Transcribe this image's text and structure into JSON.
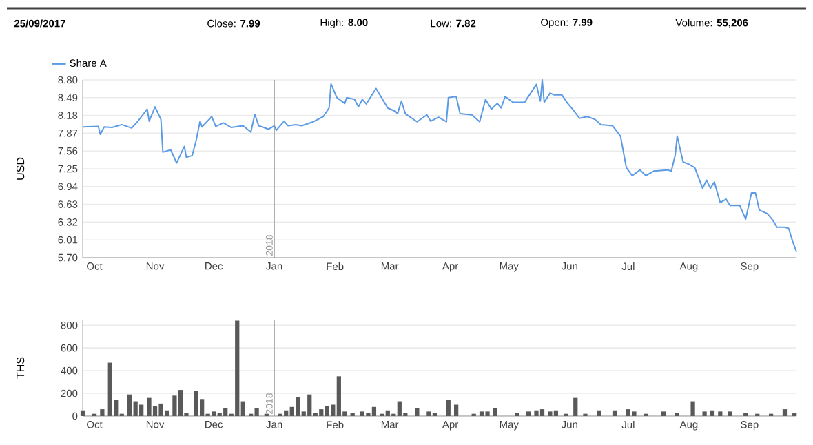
{
  "chart_data": [
    {
      "type": "line",
      "ylabel": "USD",
      "grid": "y",
      "legend": "top left",
      "annotations": [
        "25/09/2017",
        "Close: **7.99**",
        "High: **8.00**",
        "Low: **7.82**",
        "Open: **7.99**",
        "Volume: **55,206**"
      ],
      "xlim": [
        "2017-09-25",
        "2018-09-25"
      ],
      "xticks": [
        {
          "value": "2017-10-01",
          "label": "Oct"
        },
        {
          "value": "2017-11-01",
          "label": "Nov"
        },
        {
          "value": "2017-12-01",
          "label": "Dec"
        },
        {
          "value": "2018-01-01",
          "label": "Jan"
        },
        {
          "value": "2018-02-01",
          "label": "Feb"
        },
        {
          "value": "2018-03-01",
          "label": "Mar"
        },
        {
          "value": "2018-04-01",
          "label": "Apr"
        },
        {
          "value": "2018-05-01",
          "label": "May"
        },
        {
          "value": "2018-06-01",
          "label": "Jun"
        },
        {
          "value": "2018-07-01",
          "label": "Jul"
        },
        {
          "value": "2018-08-01",
          "label": "Aug"
        },
        {
          "value": "2018-09-01",
          "label": "Sep"
        }
      ],
      "ylim": [
        5.7,
        8.8
      ],
      "yticks": [
        {
          "value": 5.7,
          "label": "5.70"
        },
        6.01,
        6.32,
        6.63,
        6.94,
        7.25,
        7.56,
        7.87,
        8.18,
        8.49,
        {
          "value": 8.8,
          "label": "8.80"
        }
      ],
      "ref_lines": [
        {
          "axis": "x",
          "value": "2018-01-01",
          "label": "2018",
          "color": "#999999"
        }
      ],
      "series": [
        {
          "name": "Share A",
          "color": "#5b9be6",
          "x": [
            "2017-09-25",
            "2017-10-03",
            "2017-10-04",
            "2017-10-06",
            "2017-10-10",
            "2017-10-15",
            "2017-10-20",
            "2017-10-23",
            "2017-10-28",
            "2017-10-29",
            "2017-11-01",
            "2017-11-04",
            "2017-11-05",
            "2017-11-09",
            "2017-11-12",
            "2017-11-16",
            "2017-11-17",
            "2017-11-20",
            "2017-11-22",
            "2017-11-24",
            "2017-11-25",
            "2017-11-30",
            "2017-12-02",
            "2017-12-06",
            "2017-12-10",
            "2017-12-16",
            "2017-12-20",
            "2017-12-22",
            "2017-12-24",
            "2017-12-29",
            "2018-01-01",
            "2018-01-02",
            "2018-01-06",
            "2018-01-08",
            "2018-01-12",
            "2018-01-15",
            "2018-01-21",
            "2018-01-26",
            "2018-01-29",
            "2018-01-30",
            "2018-02-02",
            "2018-02-06",
            "2018-02-07",
            "2018-02-11",
            "2018-02-13",
            "2018-02-15",
            "2018-02-17",
            "2018-02-22",
            "2018-02-28",
            "2018-03-04",
            "2018-03-05",
            "2018-03-07",
            "2018-03-09",
            "2018-03-15",
            "2018-03-20",
            "2018-03-22",
            "2018-03-26",
            "2018-03-30",
            "2018-03-31",
            "2018-04-04",
            "2018-04-06",
            "2018-04-12",
            "2018-04-16",
            "2018-04-19",
            "2018-04-22",
            "2018-04-25",
            "2018-04-27",
            "2018-04-29",
            "2018-05-03",
            "2018-05-09",
            "2018-05-15",
            "2018-05-17",
            "2018-05-18",
            "2018-05-19",
            "2018-05-22",
            "2018-05-24",
            "2018-05-28",
            "2018-05-31",
            "2018-06-03",
            "2018-06-06",
            "2018-06-10",
            "2018-06-14",
            "2018-06-17",
            "2018-06-23",
            "2018-06-27",
            "2018-06-30",
            "2018-07-03",
            "2018-07-07",
            "2018-07-10",
            "2018-07-14",
            "2018-07-21",
            "2018-07-23",
            "2018-07-25",
            "2018-07-26",
            "2018-07-29",
            "2018-08-01",
            "2018-08-04",
            "2018-08-08",
            "2018-08-10",
            "2018-08-12",
            "2018-08-14",
            "2018-08-17",
            "2018-08-20",
            "2018-08-22",
            "2018-08-27",
            "2018-08-30",
            "2018-09-02",
            "2018-09-04",
            "2018-09-06",
            "2018-09-10",
            "2018-09-13",
            "2018-09-15",
            "2018-09-19",
            "2018-09-21",
            "2018-09-23",
            "2018-09-25"
          ],
          "values": [
            7.98,
            7.99,
            7.85,
            7.98,
            7.97,
            8.02,
            7.96,
            8.07,
            8.29,
            8.08,
            8.33,
            8.11,
            7.54,
            7.58,
            7.35,
            7.64,
            7.45,
            7.48,
            7.74,
            8.08,
            7.98,
            8.16,
            7.99,
            8.05,
            7.97,
            8.0,
            7.89,
            8.2,
            8.0,
            7.94,
            8.0,
            7.92,
            8.08,
            8.0,
            8.02,
            8.0,
            8.07,
            8.16,
            8.31,
            8.73,
            8.49,
            8.39,
            8.49,
            8.46,
            8.33,
            8.46,
            8.38,
            8.65,
            8.31,
            8.25,
            8.21,
            8.43,
            8.21,
            8.07,
            8.19,
            8.08,
            8.15,
            8.07,
            8.49,
            8.51,
            8.21,
            8.19,
            8.07,
            8.46,
            8.29,
            8.39,
            8.31,
            8.51,
            8.41,
            8.41,
            8.72,
            8.43,
            8.8,
            8.41,
            8.57,
            8.54,
            8.54,
            8.39,
            8.27,
            8.13,
            8.16,
            8.11,
            8.02,
            8.0,
            7.82,
            7.27,
            7.13,
            7.23,
            7.13,
            7.21,
            7.23,
            7.21,
            7.49,
            7.82,
            7.37,
            7.33,
            7.27,
            6.91,
            7.05,
            6.91,
            7.02,
            6.66,
            6.72,
            6.61,
            6.61,
            6.37,
            6.83,
            6.83,
            6.53,
            6.47,
            6.35,
            6.23,
            6.23,
            6.21,
            5.99,
            5.8
          ]
        }
      ]
    },
    {
      "type": "bar",
      "ylabel": "THS",
      "grid": "y",
      "color": "#595959",
      "xlim": [
        "2017-09-25",
        "2018-09-25"
      ],
      "xticks": [
        {
          "value": "2017-10-01",
          "label": "Oct"
        },
        {
          "value": "2017-11-01",
          "label": "Nov"
        },
        {
          "value": "2017-12-01",
          "label": "Dec"
        },
        {
          "value": "2018-01-01",
          "label": "Jan"
        },
        {
          "value": "2018-02-01",
          "label": "Feb"
        },
        {
          "value": "2018-03-01",
          "label": "Mar"
        },
        {
          "value": "2018-04-01",
          "label": "Apr"
        },
        {
          "value": "2018-05-01",
          "label": "May"
        },
        {
          "value": "2018-06-01",
          "label": "Jun"
        },
        {
          "value": "2018-07-01",
          "label": "Jul"
        },
        {
          "value": "2018-08-01",
          "label": "Aug"
        },
        {
          "value": "2018-09-01",
          "label": "Sep"
        }
      ],
      "ylim": [
        0,
        850
      ],
      "yticks": [
        0,
        200,
        400,
        600,
        800
      ],
      "ref_lines": [
        {
          "axis": "x",
          "value": "2018-01-01",
          "label": "2018",
          "color": "#999999"
        }
      ],
      "x": [
        "2017-09-25",
        "2017-10-01",
        "2017-10-05",
        "2017-10-09",
        "2017-10-12",
        "2017-10-15",
        "2017-10-19",
        "2017-10-22",
        "2017-10-25",
        "2017-10-29",
        "2017-11-01",
        "2017-11-04",
        "2017-11-07",
        "2017-11-11",
        "2017-11-14",
        "2017-11-17",
        "2017-11-22",
        "2017-11-25",
        "2017-11-28",
        "2017-12-01",
        "2017-12-04",
        "2017-12-07",
        "2017-12-10",
        "2017-12-13",
        "2017-12-16",
        "2017-12-20",
        "2017-12-23",
        "2017-12-28",
        "2018-01-04",
        "2018-01-07",
        "2018-01-10",
        "2018-01-13",
        "2018-01-16",
        "2018-01-19",
        "2018-01-22",
        "2018-01-25",
        "2018-01-28",
        "2018-01-31",
        "2018-02-03",
        "2018-02-06",
        "2018-02-10",
        "2018-02-15",
        "2018-02-18",
        "2018-02-21",
        "2018-02-25",
        "2018-02-28",
        "2018-03-03",
        "2018-03-06",
        "2018-03-09",
        "2018-03-15",
        "2018-03-21",
        "2018-03-24",
        "2018-03-31",
        "2018-04-04",
        "2018-04-13",
        "2018-04-17",
        "2018-04-20",
        "2018-04-24",
        "2018-05-05",
        "2018-05-11",
        "2018-05-15",
        "2018-05-18",
        "2018-05-22",
        "2018-05-25",
        "2018-05-30",
        "2018-06-04",
        "2018-06-09",
        "2018-06-16",
        "2018-06-24",
        "2018-07-01",
        "2018-07-04",
        "2018-07-10",
        "2018-07-19",
        "2018-07-26",
        "2018-08-03",
        "2018-08-09",
        "2018-08-13",
        "2018-08-17",
        "2018-08-22",
        "2018-08-30",
        "2018-09-05",
        "2018-09-12",
        "2018-09-19",
        "2018-09-24"
      ],
      "values": [
        50,
        20,
        60,
        470,
        140,
        20,
        190,
        130,
        100,
        160,
        90,
        110,
        50,
        180,
        230,
        30,
        220,
        150,
        20,
        40,
        30,
        70,
        20,
        840,
        130,
        20,
        70,
        20,
        20,
        50,
        80,
        170,
        40,
        190,
        30,
        60,
        90,
        100,
        350,
        40,
        30,
        40,
        30,
        80,
        20,
        50,
        20,
        130,
        30,
        70,
        40,
        30,
        140,
        100,
        20,
        40,
        40,
        70,
        30,
        40,
        50,
        60,
        40,
        50,
        20,
        160,
        20,
        50,
        50,
        60,
        40,
        20,
        40,
        30,
        130,
        40,
        50,
        40,
        40,
        30,
        20,
        20,
        60,
        30
      ]
    }
  ]
}
